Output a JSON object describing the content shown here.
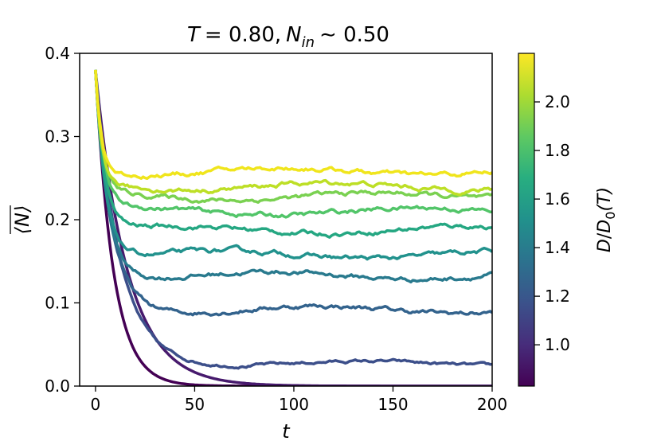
{
  "chart_data": {
    "type": "line",
    "title": {
      "T_symbol": "T",
      "T_value": "= 0.80,",
      "N_symbol": "N",
      "N_subscript": "in",
      "N_value": "∼ 0.50"
    },
    "xlabel": "t",
    "ylabel": "⟨N⟩",
    "xlim": [
      -8,
      200
    ],
    "ylim": [
      0,
      0.4
    ],
    "x_ticks": [
      "0",
      "50",
      "100",
      "150",
      "200"
    ],
    "y_ticks": [
      "0.0",
      "0.1",
      "0.2",
      "0.3",
      "0.4"
    ],
    "grid": false,
    "legend": "none",
    "colorbar": {
      "label": "D/D0(T)",
      "label_parts": {
        "D": "D",
        "slash": "/",
        "D0": "D",
        "sub": "0",
        "T": "(T)"
      },
      "range": [
        0.83,
        2.2
      ],
      "ticks": [
        "1.0",
        "1.2",
        "1.4",
        "1.6",
        "1.8",
        "2.0"
      ],
      "colormap": "viridis"
    },
    "start": {
      "t": 0,
      "value": 0.38
    },
    "series": [
      {
        "D_over_D0": 0.85,
        "color": "#440154",
        "plateau": 0.0,
        "tau": 9,
        "noise": 0.0
      },
      {
        "D_over_D0": 0.9,
        "color": "#471a6d",
        "plateau": 0.0,
        "tau": 16,
        "noise": 0.0
      },
      {
        "D_over_D0": 1.0,
        "color": "#3c4f8a",
        "plateau": 0.027,
        "tau": 12,
        "noise": 0.002
      },
      {
        "D_over_D0": 1.15,
        "color": "#33638d",
        "plateau": 0.092,
        "tau": 8,
        "noise": 0.003
      },
      {
        "D_over_D0": 1.3,
        "color": "#297a8e",
        "plateau": 0.133,
        "tau": 6,
        "noise": 0.003
      },
      {
        "D_over_D0": 1.42,
        "color": "#22928d",
        "plateau": 0.158,
        "tau": 5,
        "noise": 0.003
      },
      {
        "D_over_D0": 1.58,
        "color": "#25a782",
        "plateau": 0.188,
        "tau": 4.5,
        "noise": 0.003
      },
      {
        "D_over_D0": 1.72,
        "color": "#52c569",
        "plateau": 0.21,
        "tau": 4,
        "noise": 0.003
      },
      {
        "D_over_D0": 1.85,
        "color": "#7ad151",
        "plateau": 0.228,
        "tau": 3.5,
        "noise": 0.003
      },
      {
        "D_over_D0": 2.0,
        "color": "#bddf26",
        "plateau": 0.24,
        "tau": 3.2,
        "noise": 0.003
      },
      {
        "D_over_D0": 2.15,
        "color": "#f0e51c",
        "plateau": 0.258,
        "tau": 3,
        "noise": 0.003
      }
    ]
  }
}
